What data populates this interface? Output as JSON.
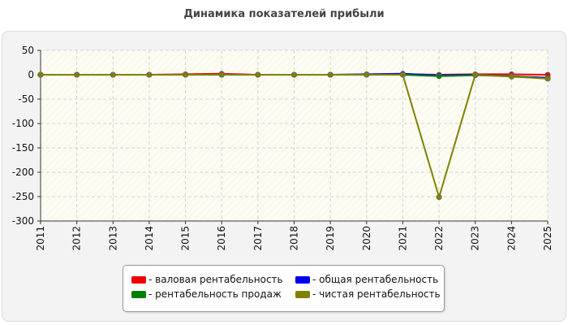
{
  "chart_data": {
    "type": "line",
    "title": "Динамика показателей прибыли",
    "x": [
      "2011",
      "2012",
      "2013",
      "2014",
      "2015",
      "2016",
      "2017",
      "2018",
      "2019",
      "2020",
      "2021",
      "2022",
      "2023",
      "2024",
      "2025"
    ],
    "yticks": [
      "50",
      "0",
      "-50",
      "-100",
      "-150",
      "-200",
      "-250",
      "-300"
    ],
    "ylim": [
      -300,
      50
    ],
    "grid": true,
    "legend_position": "bottom",
    "series": [
      {
        "name": "валовая рентабельность",
        "color": "#ee0000",
        "values": [
          0,
          0,
          0,
          0,
          1,
          2,
          0,
          0,
          0,
          0,
          1,
          0,
          1,
          1,
          0
        ]
      },
      {
        "name": "общая рентабельность",
        "color": "#0000ee",
        "values": [
          0,
          0,
          0,
          0,
          0,
          0,
          0,
          0,
          0,
          1,
          2,
          -1,
          0,
          -3,
          -6
        ]
      },
      {
        "name": "рентабельность продаж",
        "color": "#008000",
        "values": [
          0,
          0,
          0,
          0,
          0,
          0,
          0,
          0,
          0,
          0,
          0,
          -3,
          -1,
          -3,
          -8
        ]
      },
      {
        "name": "чистая рентабельность",
        "color": "#808000",
        "values": [
          0,
          0,
          0,
          0,
          0,
          0,
          0,
          0,
          0,
          0,
          0,
          -251,
          0,
          -4,
          -8
        ]
      }
    ]
  },
  "legend": {
    "item0": "- валовая рентабельность",
    "item1": "- общая рентабельность",
    "item2": "- рентабельность продаж",
    "item3": "- чистая рентабельность"
  }
}
